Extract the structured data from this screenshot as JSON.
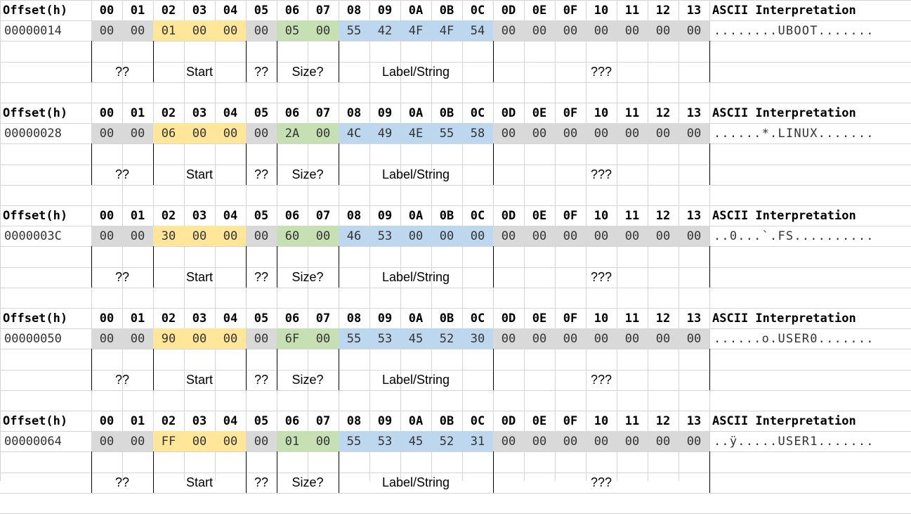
{
  "columns": {
    "offset_label": "Offset(h)",
    "bytes": [
      "00",
      "01",
      "02",
      "03",
      "04",
      "05",
      "06",
      "07",
      "08",
      "09",
      "0A",
      "0B",
      "0C",
      "0D",
      "0E",
      "0F",
      "10",
      "11",
      "12",
      "13"
    ],
    "ascii_label": "ASCII Interpretation"
  },
  "field_labels": [
    "??",
    "Start",
    "??",
    "Size?",
    "Label/String",
    "???"
  ],
  "field_colors": {
    "unknown": "#d9d9d9",
    "start": "#ffe699",
    "size": "#c6e0b4",
    "label": "#bdd7ee"
  },
  "records": [
    {
      "offset": "00000014",
      "bytes": [
        "00",
        "00",
        "01",
        "00",
        "00",
        "00",
        "05",
        "00",
        "55",
        "42",
        "4F",
        "4F",
        "54",
        "00",
        "00",
        "00",
        "00",
        "00",
        "00",
        "00"
      ],
      "ascii": "........UBOOT......."
    },
    {
      "offset": "00000028",
      "bytes": [
        "00",
        "00",
        "06",
        "00",
        "00",
        "00",
        "2A",
        "00",
        "4C",
        "49",
        "4E",
        "55",
        "58",
        "00",
        "00",
        "00",
        "00",
        "00",
        "00",
        "00"
      ],
      "ascii": "......*.LINUX......."
    },
    {
      "offset": "0000003C",
      "bytes": [
        "00",
        "00",
        "30",
        "00",
        "00",
        "00",
        "60",
        "00",
        "46",
        "53",
        "00",
        "00",
        "00",
        "00",
        "00",
        "00",
        "00",
        "00",
        "00",
        "00"
      ],
      "ascii": "..0...`.FS.........."
    },
    {
      "offset": "00000050",
      "bytes": [
        "00",
        "00",
        "90",
        "00",
        "00",
        "00",
        "6F",
        "00",
        "55",
        "53",
        "45",
        "52",
        "30",
        "00",
        "00",
        "00",
        "00",
        "00",
        "00",
        "00"
      ],
      "ascii": "......o.USER0......."
    },
    {
      "offset": "00000064",
      "bytes": [
        "00",
        "00",
        "FF",
        "00",
        "00",
        "00",
        "01",
        "00",
        "55",
        "53",
        "45",
        "52",
        "31",
        "00",
        "00",
        "00",
        "00",
        "00",
        "00",
        "00"
      ],
      "ascii": "..ÿ.....USER1......."
    }
  ]
}
